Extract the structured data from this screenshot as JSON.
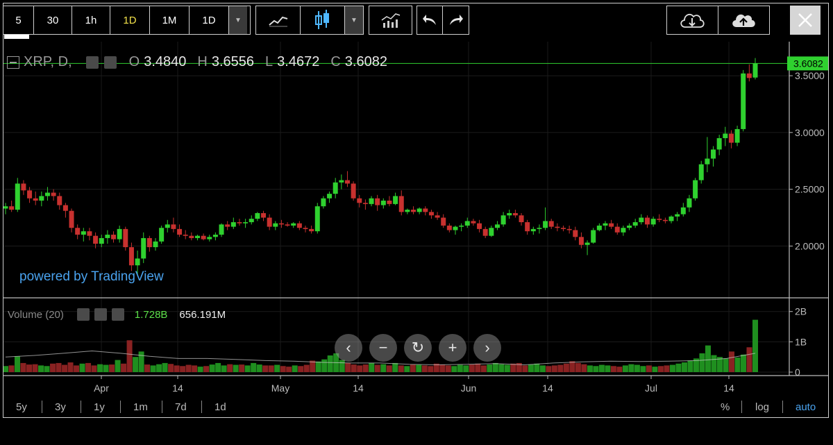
{
  "toolbar": {
    "intervals": [
      "5",
      "30",
      "1h",
      "1D",
      "1M",
      "1D"
    ],
    "active_interval": "1D",
    "icons": [
      "line-chart-icon",
      "candlestick-icon",
      "indicators-icon",
      "undo-icon",
      "redo-icon",
      "cloud-download-icon",
      "cloud-upload-icon",
      "close-icon"
    ]
  },
  "legend": {
    "symbol": "XRP, D,",
    "o_label": "O",
    "open": "3.4840",
    "h_label": "H",
    "high": "3.6556",
    "l_label": "L",
    "low": "3.4672",
    "c_label": "C",
    "close": "3.6082"
  },
  "watermark": "powered by TradingView",
  "price_axis": {
    "ticks": [
      "3.5000",
      "3.0000",
      "2.5000",
      "2.0000"
    ],
    "last_price_label": "3.6082"
  },
  "volume": {
    "label": "Volume (20)",
    "last_volume": "1.728B",
    "avg_volume": "656.191M",
    "ticks": [
      "2B",
      "1B",
      "0"
    ]
  },
  "time_axis": [
    "Apr",
    "14",
    "May",
    "14",
    "Jun",
    "14",
    "Jul",
    "14"
  ],
  "ranges": [
    "5y",
    "3y",
    "1y",
    "1m",
    "7d",
    "1d"
  ],
  "scale_options": {
    "percent": "%",
    "log": "log",
    "auto": "auto"
  },
  "colors": {
    "up": "#2fd12f",
    "down": "#c8312f",
    "last_price": "#2fd12f",
    "accent": "#f2e14a",
    "link": "#4aa3ef"
  },
  "chart_data": {
    "type": "candlestick",
    "symbol": "XRP",
    "ylim": [
      1.55,
      3.8
    ],
    "volume_ylim": [
      0,
      2.2
    ],
    "candles": [
      [
        2.33,
        2.38,
        2.28,
        2.35
      ],
      [
        2.35,
        2.4,
        2.3,
        2.32
      ],
      [
        2.32,
        2.6,
        2.3,
        2.55
      ],
      [
        2.55,
        2.58,
        2.45,
        2.49
      ],
      [
        2.49,
        2.52,
        2.38,
        2.42
      ],
      [
        2.42,
        2.48,
        2.36,
        2.4
      ],
      [
        2.4,
        2.48,
        2.35,
        2.44
      ],
      [
        2.44,
        2.52,
        2.4,
        2.47
      ],
      [
        2.47,
        2.5,
        2.4,
        2.44
      ],
      [
        2.44,
        2.47,
        2.32,
        2.36
      ],
      [
        2.36,
        2.38,
        2.25,
        2.31
      ],
      [
        2.31,
        2.33,
        2.12,
        2.16
      ],
      [
        2.16,
        2.19,
        2.06,
        2.1
      ],
      [
        2.1,
        2.16,
        2.04,
        2.13
      ],
      [
        2.13,
        2.16,
        2.05,
        2.09
      ],
      [
        2.09,
        2.12,
        1.98,
        2.02
      ],
      [
        2.02,
        2.1,
        1.99,
        2.07
      ],
      [
        2.07,
        2.14,
        2.02,
        2.1
      ],
      [
        2.1,
        2.13,
        2.03,
        2.06
      ],
      [
        2.06,
        2.18,
        2.03,
        2.15
      ],
      [
        2.15,
        2.17,
        1.96,
        1.99
      ],
      [
        1.99,
        2.03,
        1.78,
        1.83
      ],
      [
        1.83,
        1.96,
        1.75,
        1.89
      ],
      [
        1.89,
        2.12,
        1.85,
        2.07
      ],
      [
        2.07,
        2.09,
        1.95,
        1.99
      ],
      [
        1.99,
        2.07,
        1.96,
        2.04
      ],
      [
        2.04,
        2.18,
        2.02,
        2.16
      ],
      [
        2.16,
        2.23,
        2.12,
        2.19
      ],
      [
        2.19,
        2.25,
        2.12,
        2.15
      ],
      [
        2.15,
        2.19,
        2.08,
        2.1
      ],
      [
        2.1,
        2.14,
        2.06,
        2.09
      ],
      [
        2.09,
        2.12,
        2.05,
        2.07
      ],
      [
        2.07,
        2.1,
        2.05,
        2.09
      ],
      [
        2.09,
        2.11,
        2.05,
        2.06
      ],
      [
        2.06,
        2.1,
        2.04,
        2.08
      ],
      [
        2.08,
        2.12,
        2.05,
        2.1
      ],
      [
        2.1,
        2.2,
        2.08,
        2.19
      ],
      [
        2.19,
        2.22,
        2.14,
        2.17
      ],
      [
        2.17,
        2.25,
        2.15,
        2.21
      ],
      [
        2.21,
        2.24,
        2.18,
        2.2
      ],
      [
        2.2,
        2.24,
        2.16,
        2.21
      ],
      [
        2.21,
        2.27,
        2.19,
        2.24
      ],
      [
        2.24,
        2.3,
        2.22,
        2.29
      ],
      [
        2.29,
        2.31,
        2.22,
        2.25
      ],
      [
        2.25,
        2.28,
        2.14,
        2.17
      ],
      [
        2.17,
        2.22,
        2.14,
        2.2
      ],
      [
        2.2,
        2.23,
        2.16,
        2.19
      ],
      [
        2.19,
        2.21,
        2.17,
        2.18
      ],
      [
        2.18,
        2.21,
        2.16,
        2.2
      ],
      [
        2.2,
        2.22,
        2.14,
        2.16
      ],
      [
        2.16,
        2.18,
        2.12,
        2.15
      ],
      [
        2.15,
        2.18,
        2.11,
        2.13
      ],
      [
        2.13,
        2.38,
        2.11,
        2.35
      ],
      [
        2.35,
        2.44,
        2.33,
        2.42
      ],
      [
        2.42,
        2.48,
        2.38,
        2.46
      ],
      [
        2.46,
        2.6,
        2.42,
        2.56
      ],
      [
        2.56,
        2.63,
        2.5,
        2.58
      ],
      [
        2.58,
        2.66,
        2.52,
        2.55
      ],
      [
        2.55,
        2.57,
        2.4,
        2.42
      ],
      [
        2.42,
        2.45,
        2.34,
        2.38
      ],
      [
        2.38,
        2.41,
        2.32,
        2.37
      ],
      [
        2.37,
        2.44,
        2.35,
        2.42
      ],
      [
        2.42,
        2.45,
        2.31,
        2.36
      ],
      [
        2.36,
        2.42,
        2.33,
        2.4
      ],
      [
        2.4,
        2.44,
        2.35,
        2.37
      ],
      [
        2.37,
        2.47,
        2.36,
        2.44
      ],
      [
        2.44,
        2.49,
        2.27,
        2.3
      ],
      [
        2.3,
        2.33,
        2.28,
        2.32
      ],
      [
        2.32,
        2.35,
        2.28,
        2.3
      ],
      [
        2.3,
        2.34,
        2.28,
        2.33
      ],
      [
        2.33,
        2.35,
        2.27,
        2.3
      ],
      [
        2.3,
        2.32,
        2.24,
        2.27
      ],
      [
        2.27,
        2.3,
        2.23,
        2.25
      ],
      [
        2.25,
        2.28,
        2.16,
        2.18
      ],
      [
        2.18,
        2.2,
        2.12,
        2.14
      ],
      [
        2.14,
        2.18,
        2.1,
        2.17
      ],
      [
        2.17,
        2.2,
        2.13,
        2.18
      ],
      [
        2.18,
        2.25,
        2.16,
        2.22
      ],
      [
        2.22,
        2.24,
        2.18,
        2.2
      ],
      [
        2.2,
        2.23,
        2.12,
        2.15
      ],
      [
        2.15,
        2.17,
        2.07,
        2.09
      ],
      [
        2.09,
        2.18,
        2.08,
        2.16
      ],
      [
        2.16,
        2.22,
        2.14,
        2.19
      ],
      [
        2.19,
        2.3,
        2.17,
        2.27
      ],
      [
        2.27,
        2.32,
        2.24,
        2.29
      ],
      [
        2.29,
        2.32,
        2.25,
        2.27
      ],
      [
        2.27,
        2.29,
        2.18,
        2.21
      ],
      [
        2.21,
        2.23,
        2.1,
        2.13
      ],
      [
        2.13,
        2.17,
        2.1,
        2.15
      ],
      [
        2.15,
        2.19,
        2.11,
        2.16
      ],
      [
        2.16,
        2.34,
        2.14,
        2.22
      ],
      [
        2.22,
        2.24,
        2.15,
        2.17
      ],
      [
        2.17,
        2.2,
        2.13,
        2.16
      ],
      [
        2.16,
        2.18,
        2.13,
        2.15
      ],
      [
        2.15,
        2.18,
        2.11,
        2.14
      ],
      [
        2.14,
        2.17,
        2.05,
        2.08
      ],
      [
        2.08,
        2.12,
        1.98,
        2.01
      ],
      [
        2.01,
        2.05,
        1.92,
        2.03
      ],
      [
        2.03,
        2.16,
        2.02,
        2.14
      ],
      [
        2.14,
        2.2,
        2.13,
        2.18
      ],
      [
        2.18,
        2.22,
        2.14,
        2.2
      ],
      [
        2.2,
        2.23,
        2.15,
        2.17
      ],
      [
        2.17,
        2.2,
        2.1,
        2.12
      ],
      [
        2.12,
        2.18,
        2.09,
        2.16
      ],
      [
        2.16,
        2.2,
        2.14,
        2.18
      ],
      [
        2.18,
        2.24,
        2.16,
        2.21
      ],
      [
        2.21,
        2.28,
        2.19,
        2.25
      ],
      [
        2.25,
        2.27,
        2.16,
        2.19
      ],
      [
        2.19,
        2.26,
        2.17,
        2.24
      ],
      [
        2.24,
        2.28,
        2.21,
        2.23
      ],
      [
        2.23,
        2.25,
        2.2,
        2.22
      ],
      [
        2.22,
        2.27,
        2.2,
        2.26
      ],
      [
        2.26,
        2.3,
        2.22,
        2.28
      ],
      [
        2.28,
        2.38,
        2.26,
        2.34
      ],
      [
        2.34,
        2.45,
        2.3,
        2.42
      ],
      [
        2.42,
        2.6,
        2.4,
        2.58
      ],
      [
        2.58,
        2.75,
        2.55,
        2.72
      ],
      [
        2.72,
        2.96,
        2.65,
        2.77
      ],
      [
        2.77,
        2.88,
        2.7,
        2.85
      ],
      [
        2.85,
        2.98,
        2.8,
        2.95
      ],
      [
        2.95,
        3.05,
        2.88,
        2.99
      ],
      [
        2.99,
        3.02,
        2.86,
        2.91
      ],
      [
        2.91,
        3.06,
        2.88,
        3.03
      ],
      [
        3.03,
        3.55,
        3.01,
        3.52
      ],
      [
        3.52,
        3.6,
        3.45,
        3.48
      ],
      [
        3.484,
        3.6556,
        3.4672,
        3.6082
      ]
    ],
    "volume_b": [
      0.2,
      0.22,
      0.52,
      0.3,
      0.25,
      0.26,
      0.22,
      0.2,
      0.28,
      0.3,
      0.24,
      0.32,
      0.22,
      0.28,
      0.3,
      0.22,
      0.26,
      0.24,
      0.25,
      0.4,
      0.28,
      1.05,
      0.5,
      0.68,
      0.25,
      0.22,
      0.26,
      0.3,
      0.27,
      0.22,
      0.2,
      0.24,
      0.22,
      0.18,
      0.2,
      0.25,
      0.3,
      0.22,
      0.26,
      0.24,
      0.25,
      0.22,
      0.3,
      0.25,
      0.22,
      0.22,
      0.24,
      0.2,
      0.18,
      0.22,
      0.2,
      0.24,
      0.38,
      0.35,
      0.42,
      0.55,
      0.62,
      0.4,
      0.3,
      0.25,
      0.22,
      0.25,
      0.3,
      0.24,
      0.26,
      0.22,
      0.3,
      0.22,
      0.2,
      0.25,
      0.24,
      0.22,
      0.2,
      0.28,
      0.25,
      0.22,
      0.2,
      0.24,
      0.22,
      0.25,
      0.28,
      0.22,
      0.25,
      0.3,
      0.26,
      0.24,
      0.28,
      0.3,
      0.22,
      0.25,
      0.28,
      0.22,
      0.2,
      0.22,
      0.24,
      0.28,
      0.36,
      0.3,
      0.26,
      0.22,
      0.2,
      0.24,
      0.22,
      0.2,
      0.18,
      0.22,
      0.26,
      0.24,
      0.2,
      0.22,
      0.18,
      0.2,
      0.22,
      0.24,
      0.28,
      0.32,
      0.38,
      0.45,
      0.62,
      0.88,
      0.56,
      0.5,
      0.45,
      0.68,
      0.48,
      0.58,
      0.82,
      1.728
    ],
    "volume_ma_b": [
      0.5,
      0.55,
      0.62,
      0.7,
      0.62,
      0.52,
      0.45,
      0.45,
      0.42,
      0.38,
      0.36,
      0.32,
      0.3,
      0.3,
      0.26,
      0.24,
      0.26,
      0.28,
      0.24,
      0.3,
      0.34,
      0.36,
      0.35,
      0.36,
      0.38,
      0.45,
      0.62
    ]
  }
}
